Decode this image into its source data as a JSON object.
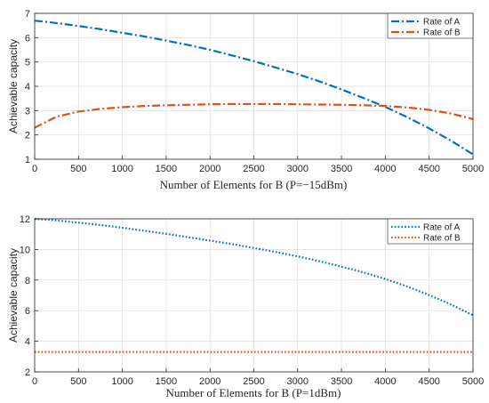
{
  "chart_data": [
    {
      "type": "line",
      "xlabel": "Number of Elements for B (P=−15dBm)",
      "ylabel": "Achievable capacity",
      "xlim": [
        0,
        5000
      ],
      "ylim": [
        1,
        7
      ],
      "xticks": [
        "0",
        "500",
        "1000",
        "1500",
        "2000",
        "2500",
        "3000",
        "3500",
        "4000",
        "4500",
        "5000"
      ],
      "yticks": [
        "1",
        "2",
        "3",
        "4",
        "5",
        "6",
        "7"
      ],
      "grid": true,
      "legend_position": "top-right",
      "line_style": "dash-dot",
      "x": [
        0,
        250,
        500,
        750,
        1000,
        1250,
        1500,
        1750,
        2000,
        2250,
        2500,
        2750,
        3000,
        3250,
        3500,
        3750,
        4000,
        4250,
        4500,
        4750,
        5000
      ],
      "series": [
        {
          "name": "Rate of A",
          "color": "#0072BD",
          "values": [
            6.7,
            6.6,
            6.48,
            6.35,
            6.2,
            6.05,
            5.88,
            5.7,
            5.5,
            5.27,
            5.03,
            4.77,
            4.5,
            4.2,
            3.87,
            3.52,
            3.15,
            2.73,
            2.27,
            1.76,
            1.2
          ]
        },
        {
          "name": "Rate of B",
          "color": "#D95319",
          "values": [
            2.3,
            2.75,
            2.96,
            3.07,
            3.14,
            3.19,
            3.22,
            3.24,
            3.26,
            3.27,
            3.27,
            3.27,
            3.26,
            3.25,
            3.24,
            3.22,
            3.19,
            3.13,
            3.03,
            2.88,
            2.65
          ]
        }
      ]
    },
    {
      "type": "line",
      "xlabel": "Number of Elements for B (P=1dBm)",
      "ylabel": "Achievable capacity",
      "xlim": [
        0,
        5000
      ],
      "ylim": [
        2,
        12
      ],
      "xticks": [
        "0",
        "500",
        "1000",
        "1500",
        "2000",
        "2500",
        "3000",
        "3500",
        "4000",
        "4500",
        "5000"
      ],
      "yticks": [
        "2",
        "4",
        "6",
        "8",
        "10",
        "12"
      ],
      "grid": true,
      "legend_position": "top-right",
      "line_style": "dotted",
      "x": [
        0,
        250,
        500,
        750,
        1000,
        1250,
        1500,
        1750,
        2000,
        2250,
        2500,
        2750,
        3000,
        3250,
        3500,
        3750,
        4000,
        4250,
        4500,
        4750,
        5000
      ],
      "series": [
        {
          "name": "Rate of A",
          "color": "#0072BD",
          "values": [
            12.0,
            11.9,
            11.75,
            11.6,
            11.42,
            11.22,
            11.02,
            10.8,
            10.58,
            10.35,
            10.1,
            9.83,
            9.55,
            9.23,
            8.88,
            8.5,
            8.07,
            7.58,
            7.02,
            6.4,
            5.7
          ]
        },
        {
          "name": "Rate of B",
          "color": "#D95319",
          "values": [
            3.3,
            3.3,
            3.3,
            3.3,
            3.3,
            3.3,
            3.3,
            3.3,
            3.3,
            3.3,
            3.3,
            3.3,
            3.3,
            3.3,
            3.3,
            3.3,
            3.3,
            3.3,
            3.3,
            3.3,
            3.3
          ]
        }
      ]
    }
  ]
}
